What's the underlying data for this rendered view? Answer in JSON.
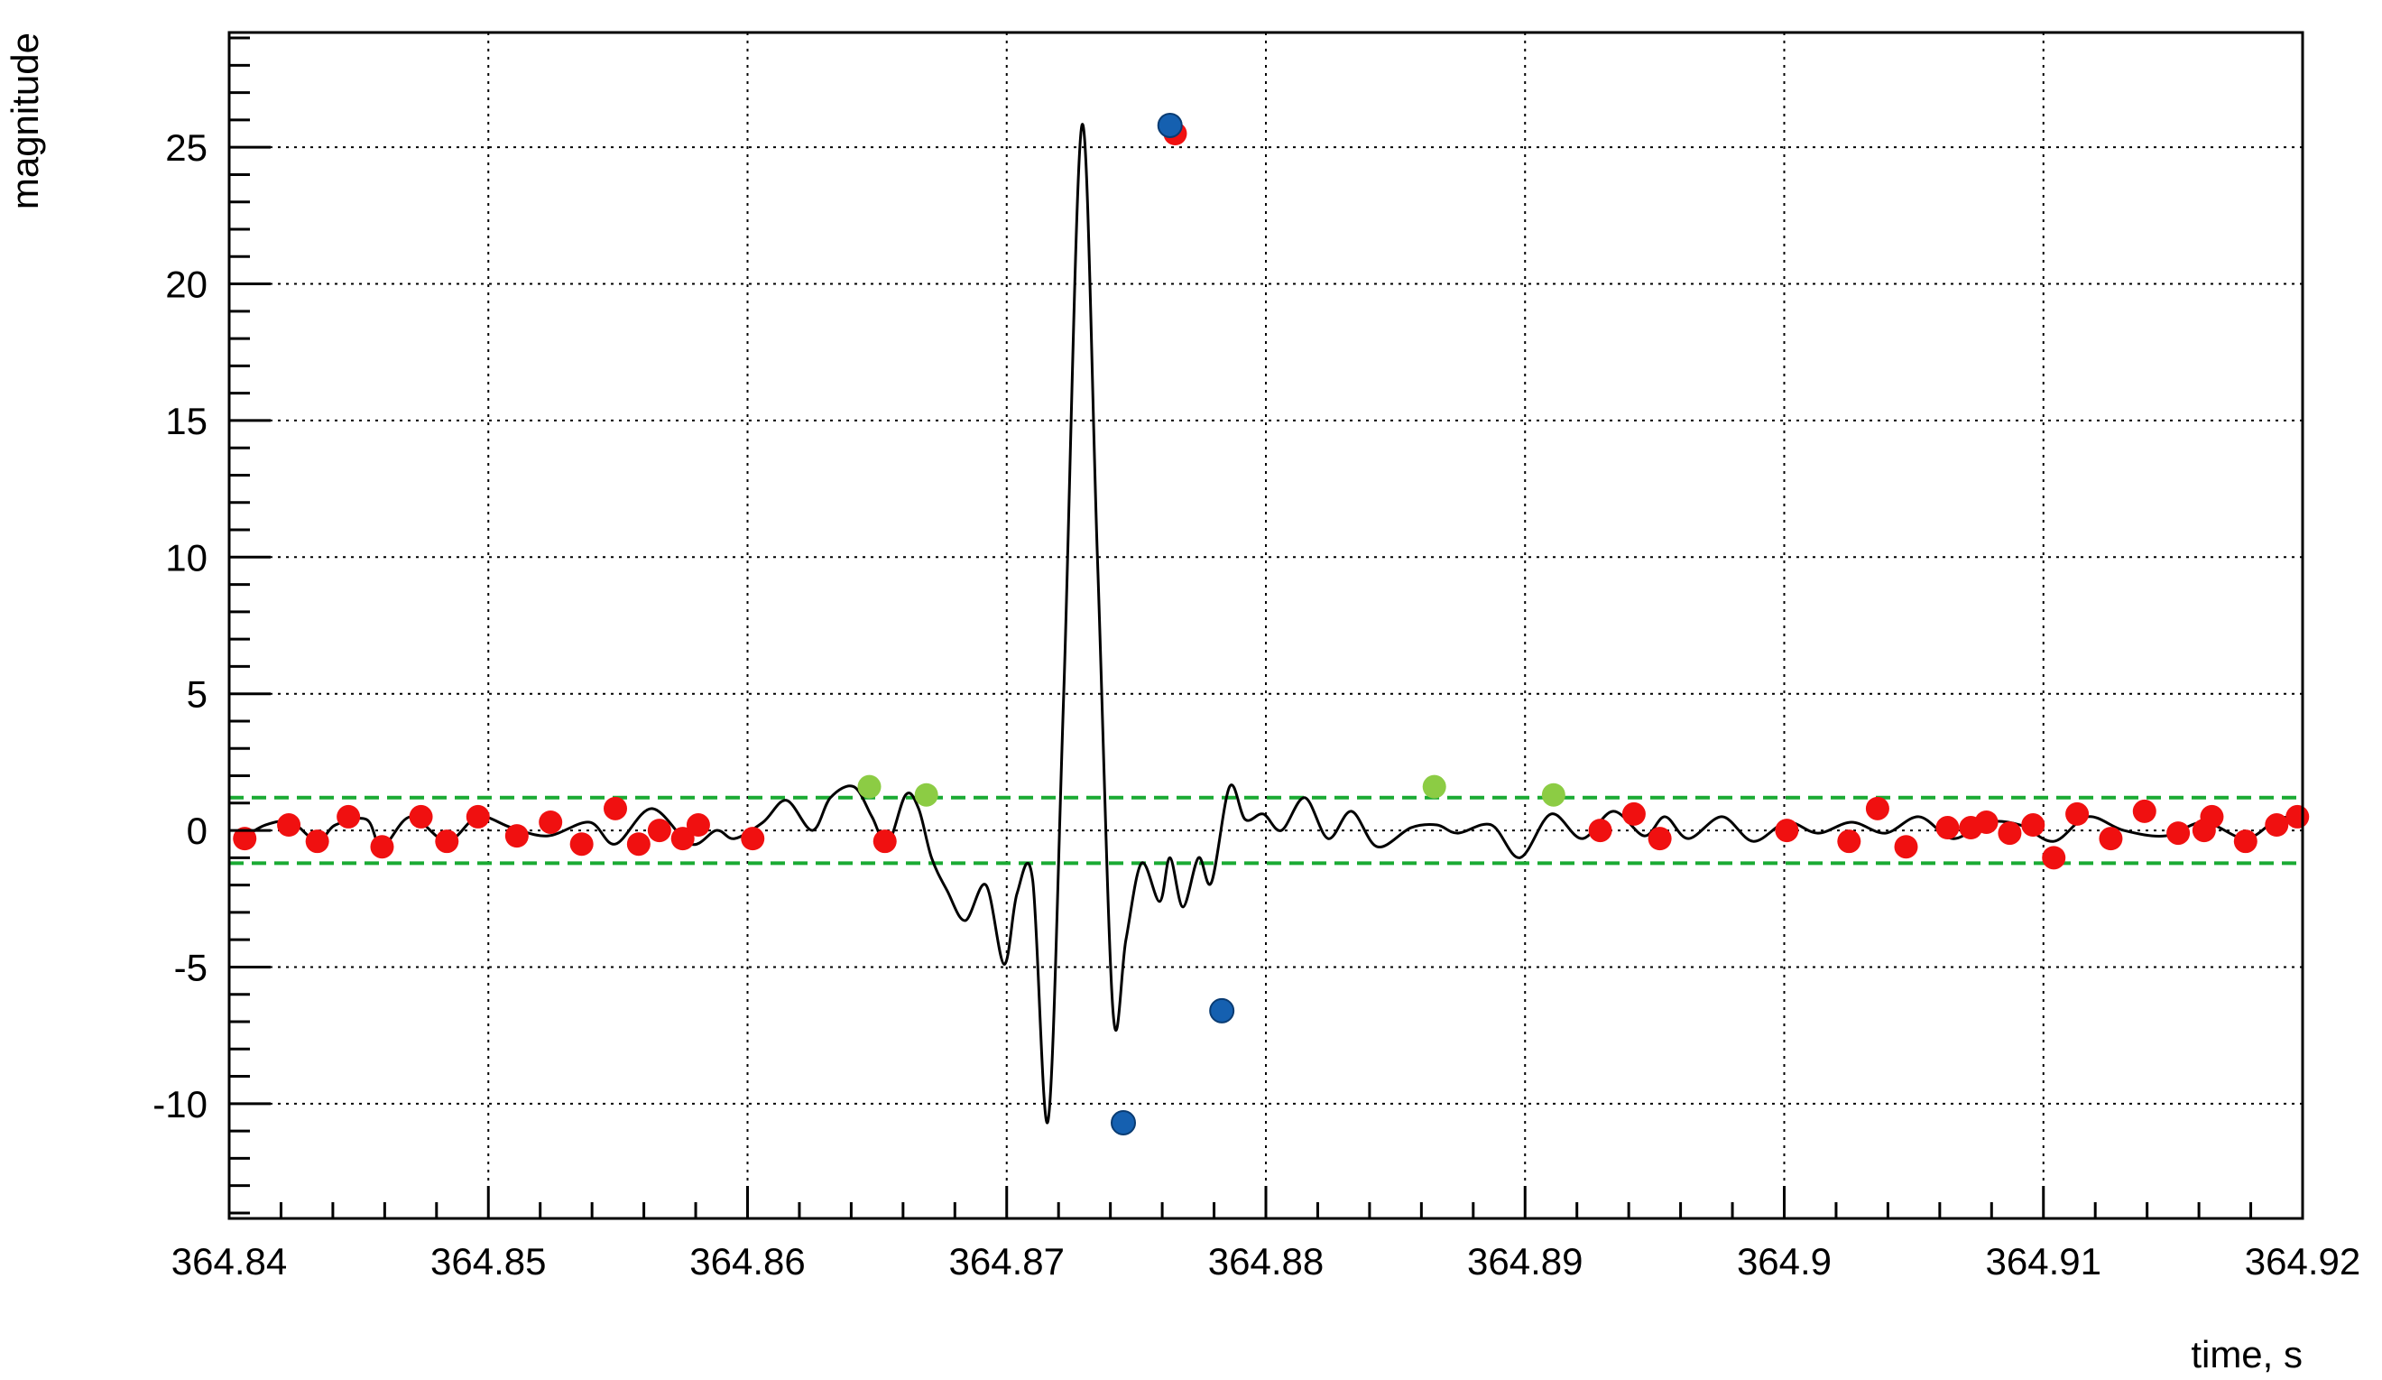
{
  "chart_data": {
    "type": "scatter",
    "title": "",
    "xlabel": "time, s",
    "ylabel": "magnitude",
    "xlim": [
      364.84,
      364.92
    ],
    "ylim": [
      -14.2,
      29.2
    ],
    "grid": true,
    "x_ticks": [
      364.84,
      364.85,
      364.86,
      364.87,
      364.88,
      364.89,
      364.9,
      364.91,
      364.92
    ],
    "x_tick_labels": [
      "364.84",
      "364.85",
      "364.86",
      "364.87",
      "364.88",
      "364.89",
      "364.9",
      "364.91",
      "364.92"
    ],
    "y_ticks": [
      -10,
      -5,
      0,
      5,
      10,
      15,
      20,
      25
    ],
    "y_tick_labels": [
      "-10",
      "-5",
      "0",
      "5",
      "10",
      "15",
      "20",
      "25"
    ],
    "colors": {
      "line": "#000000",
      "red_points": "#f01010",
      "green_points": "#8ccc44",
      "blue_points": "#1560b0",
      "threshold": "#1aaa33"
    },
    "thresholds": [
      1.2,
      -1.2
    ],
    "series": [
      {
        "style": "line",
        "x": [
          364.8405,
          364.8414,
          364.8424,
          364.8434,
          364.8441,
          364.8453,
          364.8459,
          364.847,
          364.8484,
          364.8496,
          364.8509,
          364.8523,
          364.8539,
          364.8549,
          364.8563,
          364.8578,
          364.8588,
          364.8595,
          364.8606,
          364.8615,
          364.8625,
          364.8632,
          364.8641,
          364.8648,
          364.8654,
          364.8661,
          364.8666,
          364.8671,
          364.8677,
          364.8684,
          364.8692,
          364.8699,
          364.8704,
          364.871,
          364.8716,
          364.8722,
          364.8729,
          364.8735,
          364.8741,
          364.8746,
          364.8752,
          364.8759,
          364.8763,
          364.8768,
          364.8774,
          364.8779,
          364.8786,
          364.8792,
          364.8799,
          364.8806,
          364.8815,
          364.8824,
          364.8833,
          364.8843,
          364.8856,
          364.8866,
          364.8874,
          364.8887,
          364.8898,
          364.891,
          364.8922,
          364.8934,
          364.8946,
          364.8954,
          364.8963,
          364.8976,
          364.8988,
          364.9001,
          364.9013,
          364.9026,
          364.9039,
          364.9052,
          364.9065,
          364.9078,
          364.9091,
          364.9104,
          364.9117,
          364.9131,
          364.9147,
          364.9162,
          364.9178,
          364.919,
          364.9198
        ],
        "y": [
          -0.3,
          0.2,
          0.3,
          -0.4,
          0.2,
          0.4,
          -0.6,
          0.5,
          -0.4,
          0.5,
          0.1,
          -0.2,
          0.3,
          -0.5,
          0.8,
          -0.5,
          0.0,
          -0.3,
          0.3,
          1.1,
          0.0,
          1.2,
          1.6,
          0.5,
          -0.5,
          1.3,
          0.8,
          -1.0,
          -2.2,
          -3.3,
          -2.0,
          -4.9,
          -2.3,
          -1.8,
          -10.6,
          5.0,
          25.8,
          10.0,
          -6.6,
          -4.0,
          -1.2,
          -2.6,
          -1.0,
          -2.8,
          -1.0,
          -1.9,
          1.6,
          0.4,
          0.6,
          0.0,
          1.2,
          -0.3,
          0.7,
          -0.6,
          0.1,
          0.2,
          -0.1,
          0.2,
          -1.0,
          0.6,
          -0.3,
          0.7,
          -0.2,
          0.5,
          -0.3,
          0.5,
          -0.4,
          0.3,
          -0.1,
          0.3,
          -0.1,
          0.5,
          -0.3,
          0.3,
          0.2,
          -0.4,
          0.5,
          0.0,
          -0.2,
          0.3,
          -0.3,
          0.4,
          0.5
        ]
      },
      {
        "style": "markers",
        "color_key": "red_points",
        "x": [
          364.8406,
          364.8423,
          364.8434,
          364.8446,
          364.8459,
          364.8474,
          364.8484,
          364.8496,
          364.8511,
          364.8524,
          364.8536,
          364.8549,
          364.8558,
          364.8566,
          364.8575,
          364.8581,
          364.8602,
          364.8653,
          364.8765,
          364.9001,
          364.9025,
          364.9036,
          364.9047,
          364.9063,
          364.9072,
          364.9078,
          364.9087,
          364.9096,
          364.9104,
          364.9113,
          364.9126,
          364.9139,
          364.9152,
          364.9165,
          364.9178,
          364.919,
          364.9198,
          364.8942,
          364.8952,
          364.8929,
          364.9162
        ],
        "y": [
          -0.3,
          0.2,
          -0.4,
          0.5,
          -0.6,
          0.5,
          -0.4,
          0.5,
          -0.2,
          0.3,
          -0.5,
          0.8,
          -0.5,
          0.0,
          -0.3,
          0.2,
          -0.3,
          -0.4,
          25.5,
          0.0,
          -0.4,
          0.8,
          -0.6,
          0.1,
          0.1,
          0.3,
          -0.1,
          0.2,
          -1.0,
          0.6,
          -0.3,
          0.7,
          -0.1,
          0.5,
          -0.4,
          0.2,
          0.5,
          0.6,
          -0.3,
          0.0,
          0.0
        ]
      },
      {
        "style": "markers",
        "color_key": "green_points",
        "x": [
          364.8647,
          364.8669,
          364.8865,
          364.8911
        ],
        "y": [
          1.6,
          1.3,
          1.6,
          1.3
        ]
      },
      {
        "style": "markers",
        "color_key": "blue_points",
        "x": [
          364.8745,
          364.8763,
          364.8783
        ],
        "y": [
          -10.7,
          25.8,
          -6.6
        ]
      }
    ]
  }
}
